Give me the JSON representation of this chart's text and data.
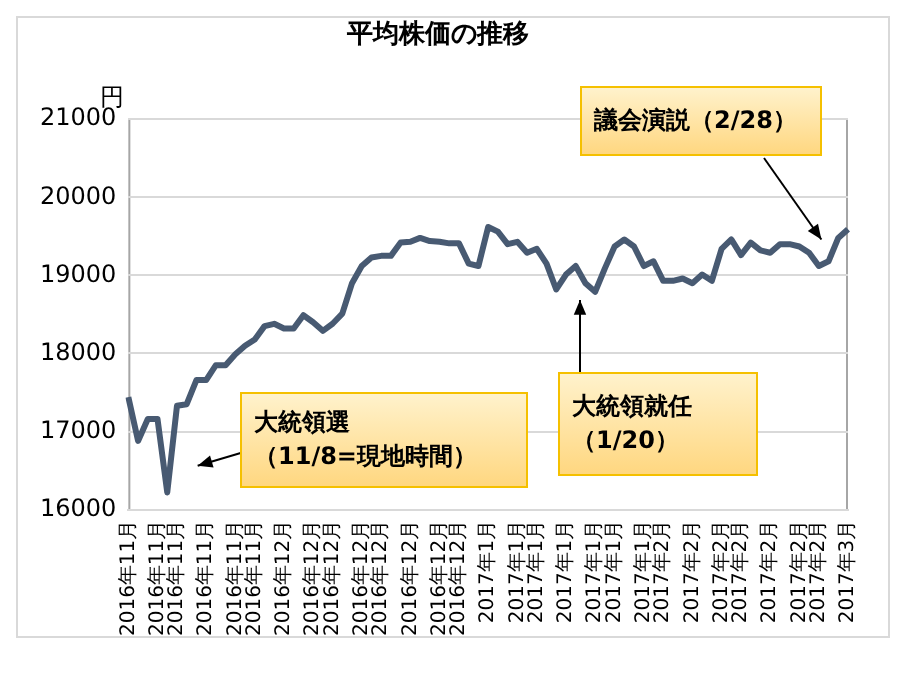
{
  "chart_data": {
    "type": "line",
    "title": "平均株価の推移",
    "ylabel": "円",
    "categories": [
      "2016年11月",
      null,
      null,
      "2016年11月",
      null,
      "2016年11月",
      null,
      null,
      "2016年11月",
      null,
      null,
      "2016年11月",
      null,
      "2016年11月",
      null,
      null,
      "2016年12月",
      null,
      null,
      "2016年12月",
      null,
      "2016年12月",
      null,
      null,
      "2016年12月",
      null,
      "2016年12月",
      null,
      null,
      "2016年12月",
      null,
      null,
      "2016年12月",
      null,
      "2016年12月",
      null,
      null,
      "2017年1月",
      null,
      null,
      "2017年1月",
      null,
      "2017年1月",
      null,
      null,
      "2017年1月",
      null,
      null,
      "2017年1月",
      null,
      "2017年1月",
      null,
      null,
      "2017年1月",
      null,
      "2017年2月",
      null,
      null,
      "2017年2月",
      null,
      null,
      "2017年2月",
      null,
      "2017年2月",
      null,
      null,
      "2017年2月",
      null,
      null,
      "2017年2月",
      null,
      "2017年2月",
      null,
      null,
      "2017年3月"
    ],
    "series": [
      {
        "color": "#485a72",
        "values": [
          17440,
          16880,
          17160,
          17160,
          16220,
          17330,
          17350,
          17660,
          17660,
          17850,
          17850,
          17990,
          18100,
          18180,
          18350,
          18380,
          18320,
          18320,
          18490,
          18400,
          18290,
          18380,
          18510,
          18900,
          19120,
          19230,
          19250,
          19250,
          19420,
          19430,
          19480,
          19440,
          19430,
          19410,
          19410,
          19150,
          19120,
          19620,
          19560,
          19400,
          19430,
          19290,
          19340,
          19150,
          18820,
          19010,
          19120,
          18900,
          18790,
          19090,
          19370,
          19460,
          19370,
          19120,
          19180,
          18930,
          18930,
          18960,
          18900,
          19010,
          18930,
          19340,
          19460,
          19260,
          19420,
          19320,
          19290,
          19400,
          19400,
          19370,
          19290,
          19120,
          19180,
          19480,
          19590
        ]
      }
    ],
    "ylim": [
      16000,
      21000
    ],
    "yticks": [
      16000,
      17000,
      18000,
      19000,
      20000,
      21000
    ],
    "grid": "y",
    "legend": false,
    "marker": "none",
    "line_style": "solid",
    "annotations": [
      "大統領選（11/8=現地時間）",
      "大統領就任（1/20）",
      "議会演説（2/28）"
    ]
  }
}
